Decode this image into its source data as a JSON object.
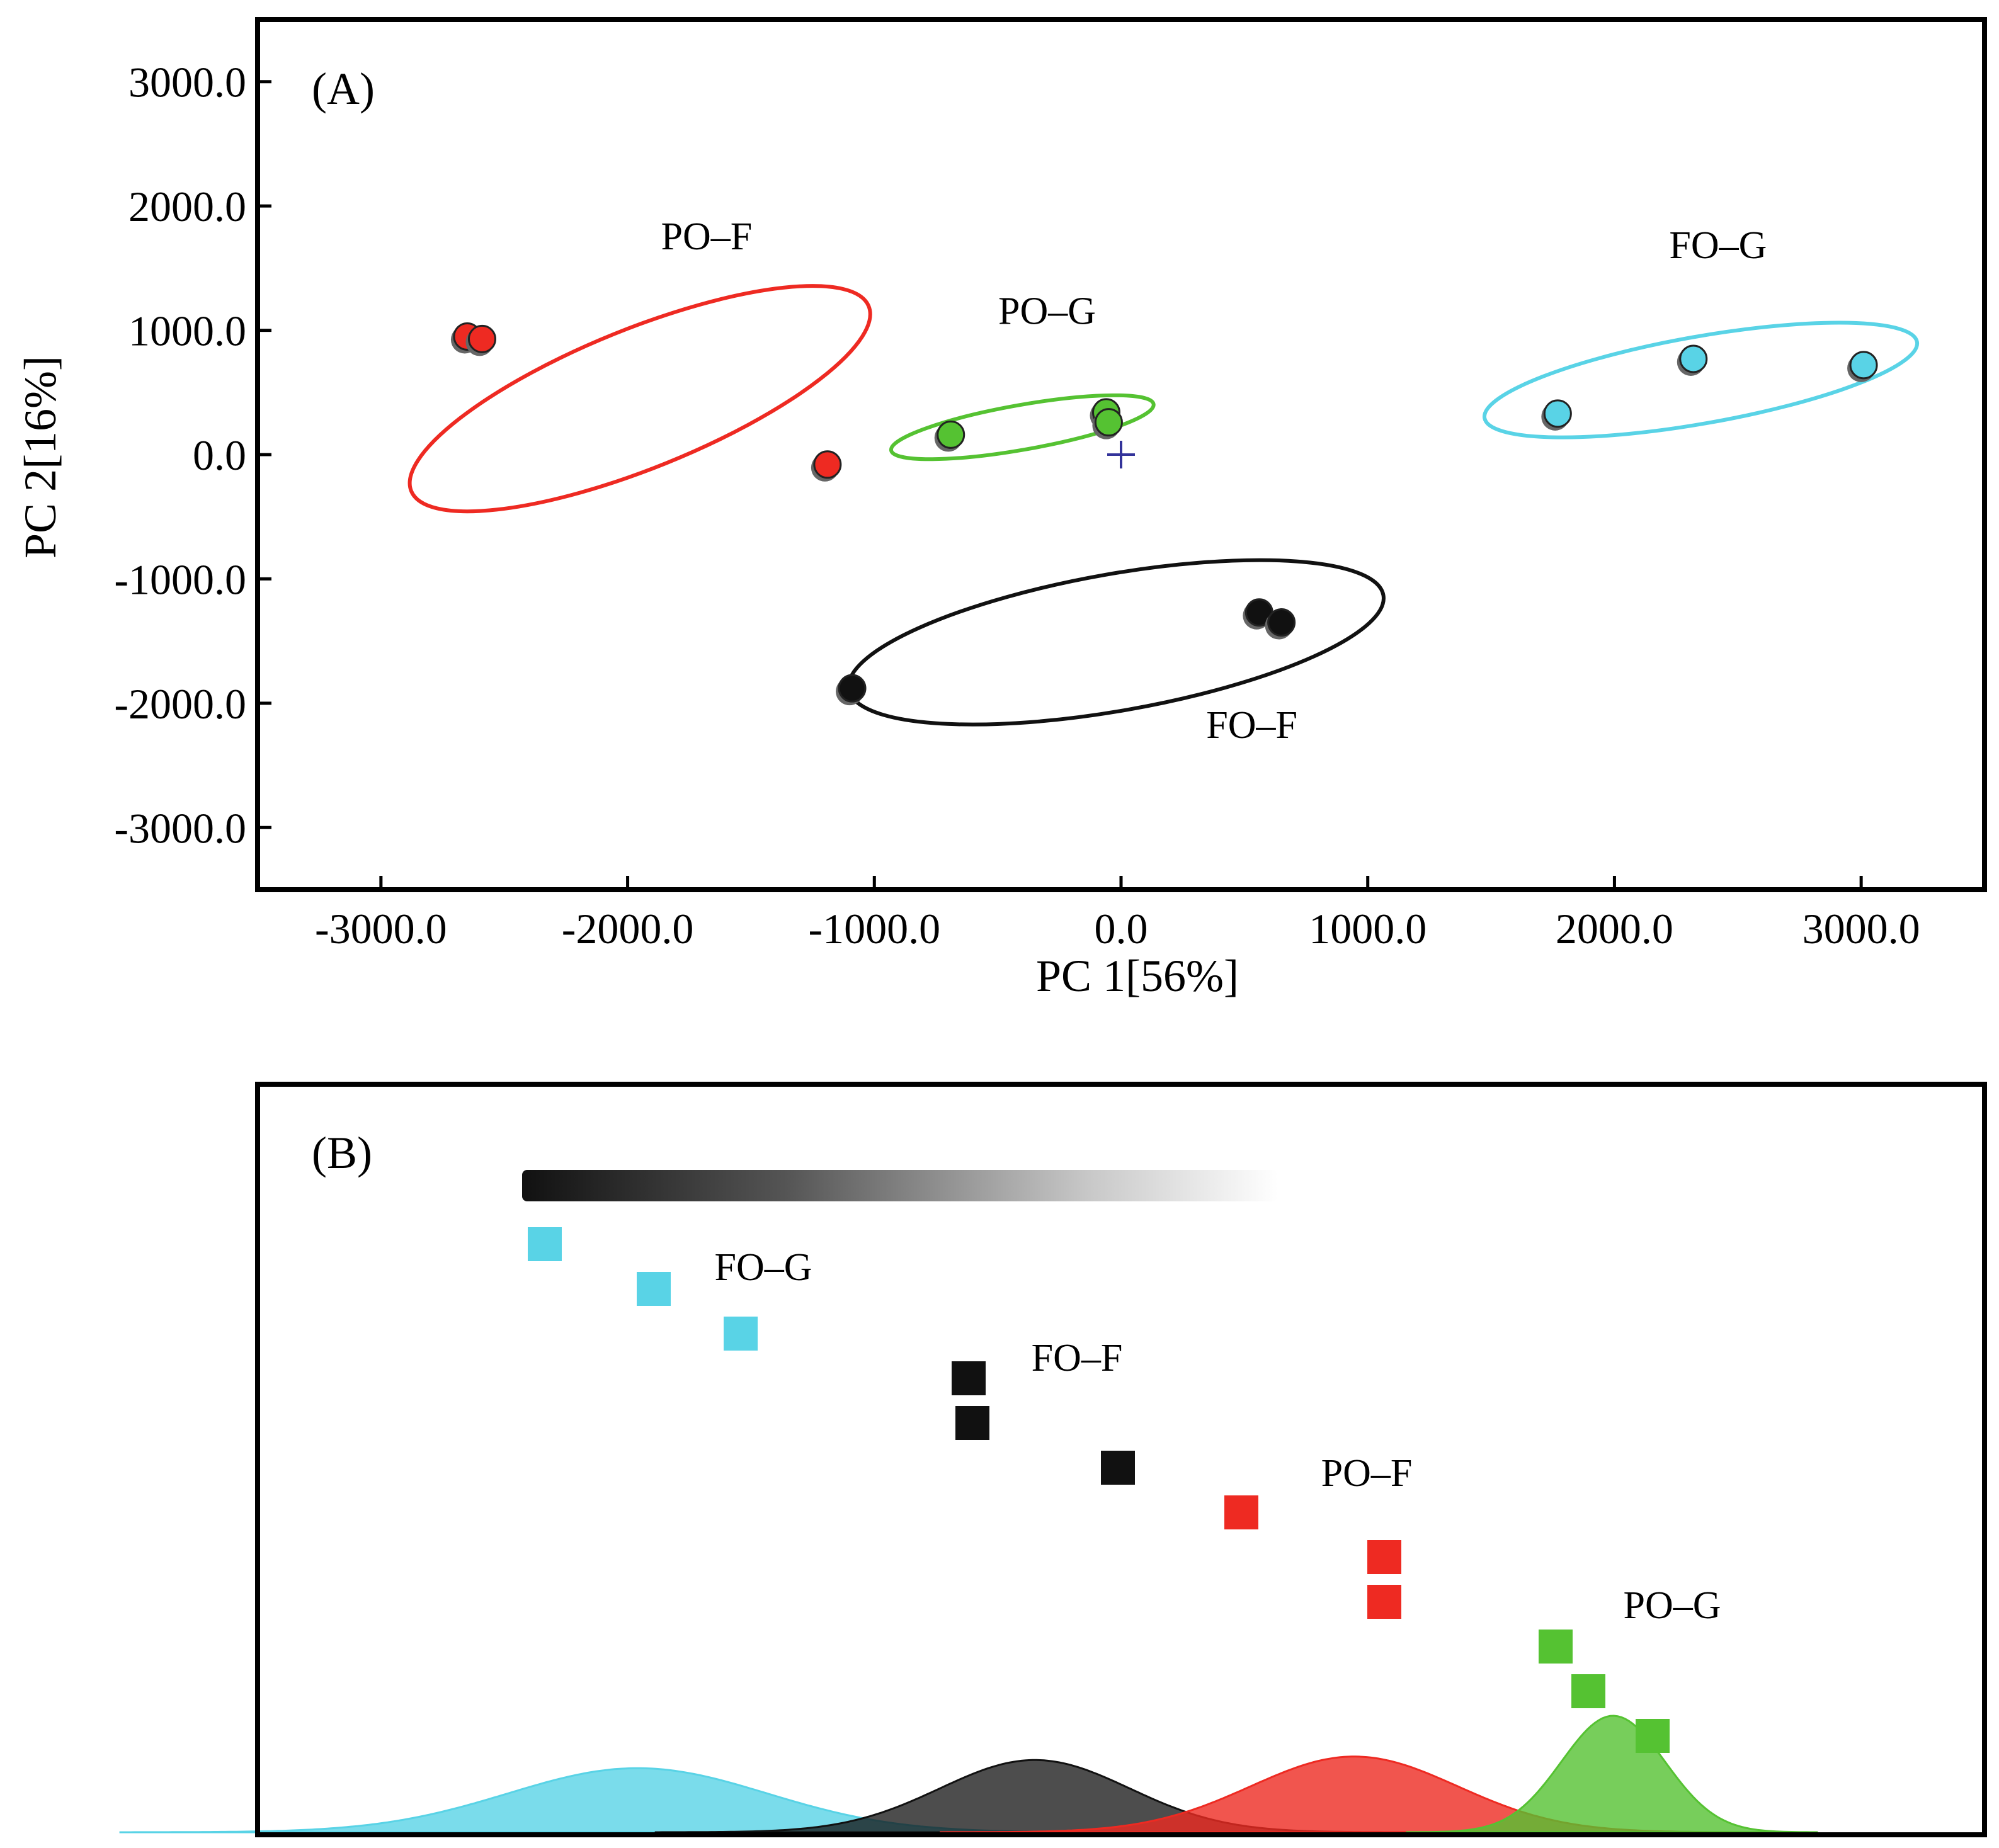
{
  "chart_data": [
    {
      "panel": "(A)",
      "type": "scatter",
      "xlabel": "PC 1[56%]",
      "ylabel": "PC 2[16%]",
      "xlim": [
        -3500,
        3500
      ],
      "ylim": [
        -3500,
        3500
      ],
      "xticks": [
        -3000,
        -2000,
        -1000,
        0,
        1000,
        2000,
        3000
      ],
      "yticks": [
        3000,
        2000,
        1000,
        0,
        -1000,
        -2000,
        -3000
      ],
      "xtick_labels": [
        "-3000.0",
        "-2000.0",
        "-1000.0",
        "0.0",
        "1000.0",
        "2000.0",
        "3000.0"
      ],
      "ytick_labels": [
        "3000.0",
        "2000.0",
        "1000.0",
        "0.0",
        "-1000.0",
        "-2000.0",
        "-3000.0"
      ],
      "origin_marker": "+",
      "series": [
        {
          "name": "PO–F",
          "color": "#ee2a22",
          "points": [
            [
              -2650,
              950
            ],
            [
              -2590,
              930
            ],
            [
              -1190,
              -80
            ]
          ],
          "ellipse": {
            "cx": -1950,
            "cy": 450,
            "rx": 1000,
            "ry": 560,
            "angle_deg": -22
          },
          "label_at": [
            -1680,
            1650
          ]
        },
        {
          "name": "PO–G",
          "color": "#55c232",
          "points": [
            [
              -690,
              160
            ],
            [
              -60,
              340
            ],
            [
              -50,
              260
            ]
          ],
          "ellipse": {
            "cx": -400,
            "cy": 220,
            "rx": 540,
            "ry": 180,
            "angle_deg": -10
          },
          "label_at": [
            -300,
            1050
          ]
        },
        {
          "name": "FO–G",
          "color": "#59d3e6",
          "points": [
            [
              1770,
              330
            ],
            [
              2320,
              770
            ],
            [
              3010,
              720
            ]
          ],
          "ellipse": {
            "cx": 2350,
            "cy": 600,
            "rx": 890,
            "ry": 350,
            "angle_deg": -10
          },
          "label_at": [
            2420,
            1580
          ]
        },
        {
          "name": "FO–F",
          "color": "#111111",
          "points": [
            [
              -1090,
              -1880
            ],
            [
              560,
              -1270
            ],
            [
              650,
              -1350
            ]
          ],
          "ellipse": {
            "cx": -20,
            "cy": -1510,
            "rx": 1100,
            "ry": 550,
            "angle_deg": -10
          },
          "label_at": [
            530,
            -2280
          ]
        }
      ]
    },
    {
      "panel": "(B)",
      "type": "scatter",
      "description_note": "ordered rank plot with gradient bar and density curves",
      "series": [
        {
          "name": "FO–G",
          "color": "#59d3e6",
          "ranks": [
            1,
            2,
            3
          ],
          "density_center": 0.22,
          "density_height": 0.55,
          "density_width": 0.075
        },
        {
          "name": "FO–F",
          "color": "#111111",
          "ranks": [
            4,
            5,
            6
          ],
          "density_center": 0.45,
          "density_height": 0.62,
          "density_width": 0.055
        },
        {
          "name": "PO–F",
          "color": "#ee2a22",
          "ranks": [
            7,
            8,
            9
          ],
          "density_center": 0.635,
          "density_height": 0.65,
          "density_width": 0.06
        },
        {
          "name": "PO–G",
          "color": "#55c232",
          "ranks": [
            10,
            11,
            12
          ],
          "density_center": 0.785,
          "density_height": 1.0,
          "density_width": 0.03
        }
      ]
    }
  ]
}
